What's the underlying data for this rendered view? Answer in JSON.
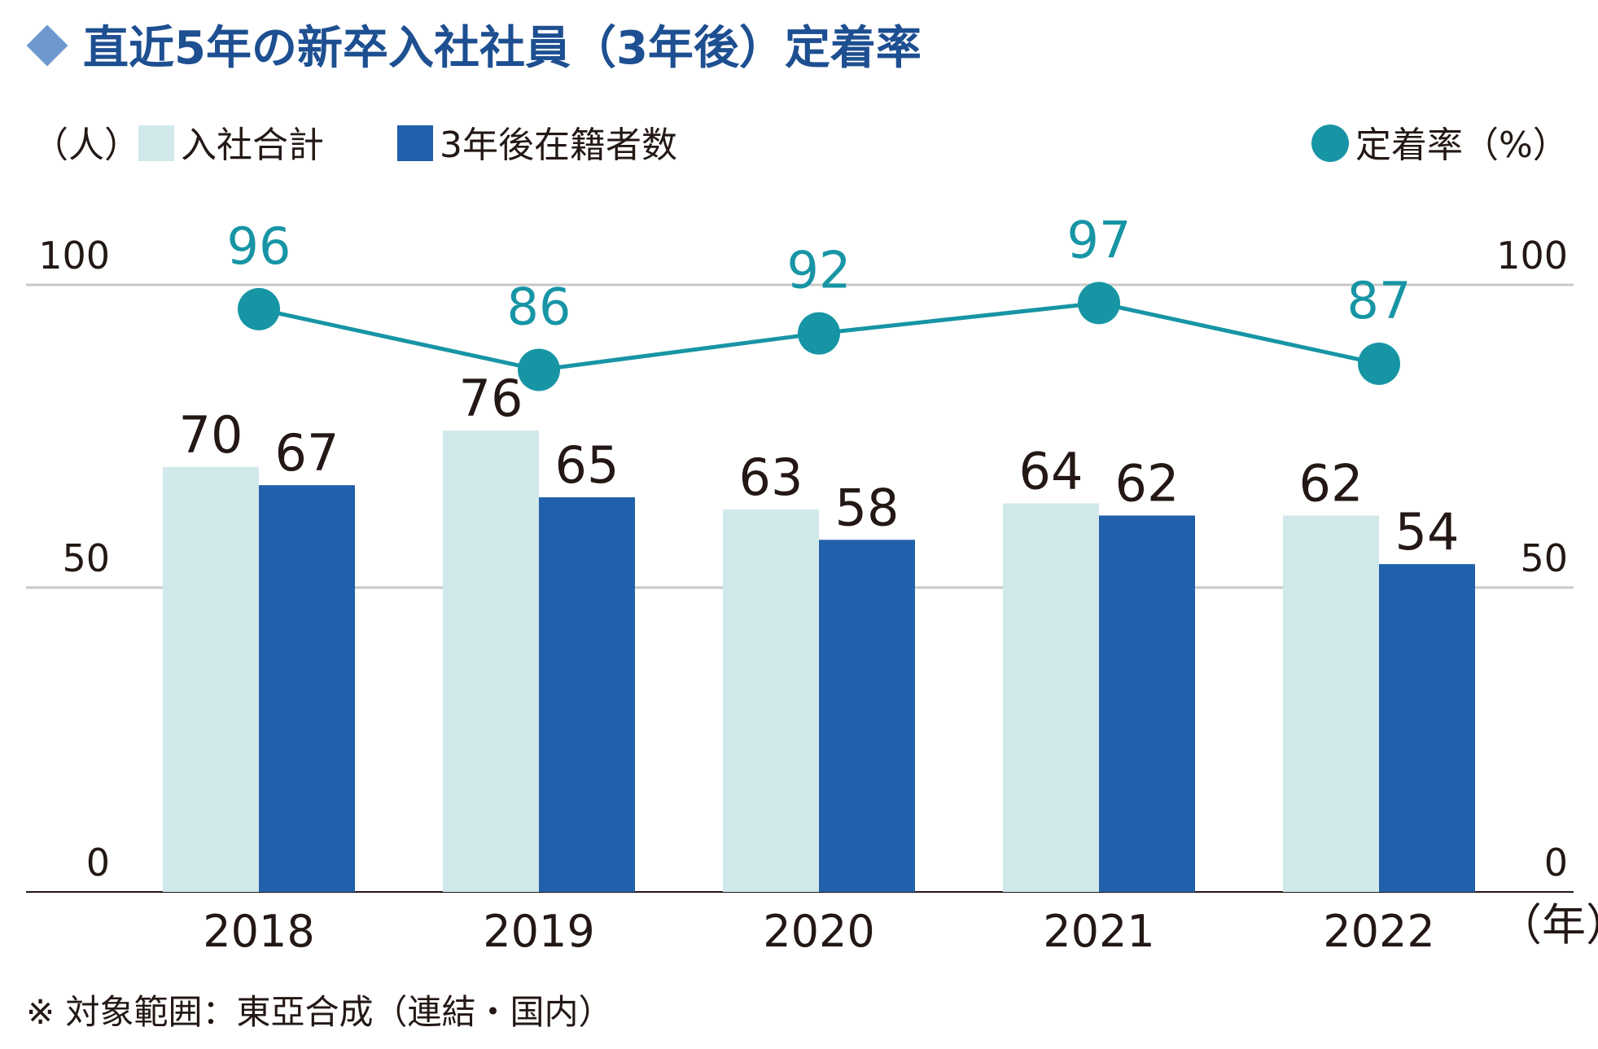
{
  "colors": {
    "title": "#1d4f91",
    "diamond": "#6f98cf",
    "bar_total": "#d1e9ea",
    "bar_retained": "#2160ab",
    "rate": "#1795a5",
    "text": "#231815",
    "grid": "#c8c8c8",
    "axis": "#231815"
  },
  "title": "直近5年の新卒入社社員（3年後）定着率",
  "legend": {
    "left_unit": "（人）",
    "total": "入社合計",
    "retained": "3年後在籍者数",
    "rate": "定着率（%）"
  },
  "x_unit": "（年）",
  "footnote": "※ 対象範囲：東亞合成（連結・国内）",
  "chart_data": {
    "type": "bar",
    "title": "直近5年の新卒入社社員（3年後）定着率",
    "categories": [
      "2018",
      "2019",
      "2020",
      "2021",
      "2022"
    ],
    "series": [
      {
        "name": "入社合計",
        "values": [
          70,
          76,
          63,
          64,
          62
        ]
      },
      {
        "name": "3年後在籍者数",
        "values": [
          67,
          65,
          58,
          62,
          54
        ]
      },
      {
        "name": "定着率（%）",
        "type": "line",
        "values": [
          96,
          86,
          92,
          97,
          87
        ]
      }
    ],
    "ylim": [
      0,
      100
    ],
    "y2lim": [
      0,
      100
    ],
    "yticks": [
      "0",
      "50",
      "100"
    ],
    "y2ticks": [
      "0",
      "50",
      "100"
    ],
    "ylabel": "（人）",
    "y2label": "（%）",
    "xlabel": "（年）"
  }
}
